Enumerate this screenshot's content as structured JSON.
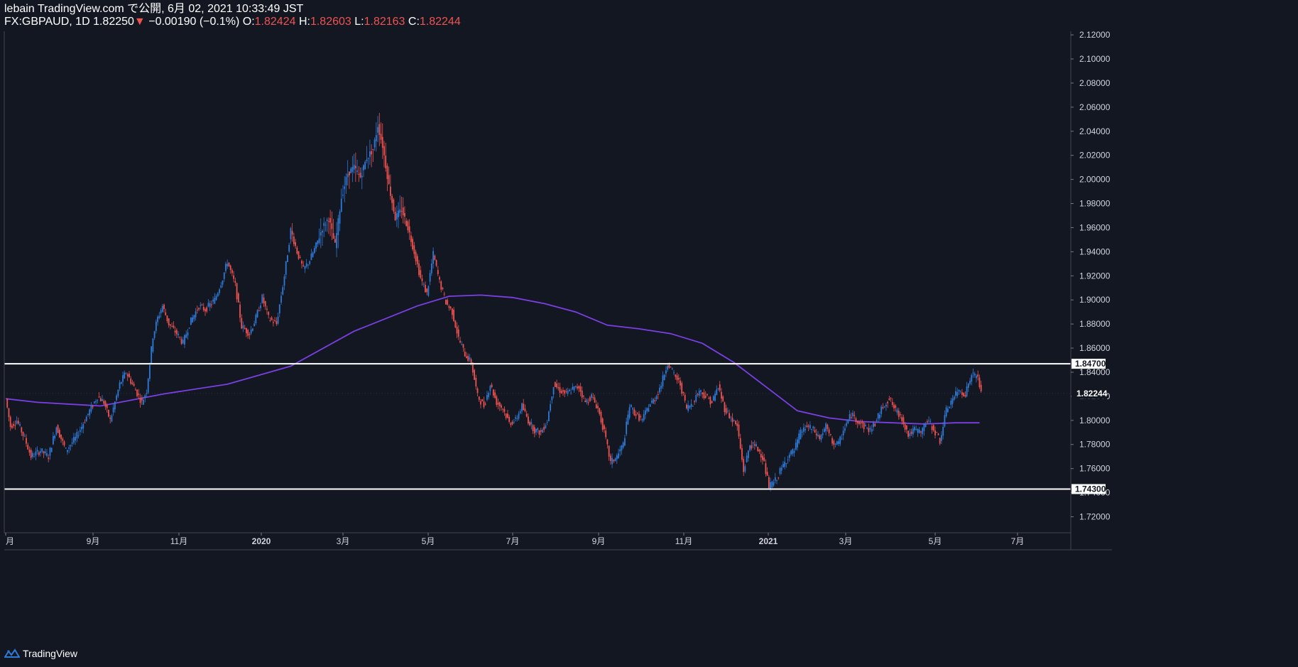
{
  "header": {
    "publish_line": "lebain TradingView.com で公開, 6月 02, 2021 10:33:49 JST",
    "symbol": "FX:GBPAUD, 1D",
    "last": "1.82250",
    "change_arrow": "▼",
    "change": "−0.00190 (−0.1%)",
    "o_label": "O:",
    "o_value": "1.82424",
    "h_label": "H:",
    "h_value": "1.82603",
    "l_label": "L:",
    "l_value": "1.82163",
    "c_label": "C:",
    "c_value": "1.82244"
  },
  "footer": {
    "brand": "TradingView",
    "logo_icon": "tradingview-logo-icon"
  },
  "colors": {
    "background": "#131722",
    "up": "#2e7ad8",
    "down": "#ef5350",
    "ma": "#7b3fe4",
    "level": "#ffffff",
    "text": "#d1d4dc"
  },
  "chart_data": {
    "type": "candlestick",
    "symbol": "FX:GBPAUD",
    "timeframe": "1D",
    "ylim": [
      1.71,
      2.13
    ],
    "y_ticks": [
      "1.72000",
      "1.74000",
      "1.76000",
      "1.78000",
      "1.80000",
      "1.82000",
      "1.84000",
      "1.86000",
      "1.88000",
      "1.90000",
      "1.92000",
      "1.94000",
      "1.96000",
      "1.98000",
      "2.00000",
      "2.02000",
      "2.04000",
      "2.06000",
      "2.08000",
      "2.10000",
      "2.12000"
    ],
    "x_ticks": [
      "月",
      "9月",
      "11月",
      "2020",
      "3月",
      "5月",
      "7月",
      "9月",
      "11月",
      "2021",
      "3月",
      "5月",
      "7月"
    ],
    "horizontal_levels": [
      {
        "label": "1.84700",
        "value": 1.847
      },
      {
        "label": "1.74300",
        "value": 1.743
      }
    ],
    "last_price_label": "1.82244",
    "last_price": 1.82244,
    "price_path": [
      [
        0,
        1.818
      ],
      [
        3,
        1.795
      ],
      [
        7,
        1.8
      ],
      [
        12,
        1.785
      ],
      [
        16,
        1.77
      ],
      [
        22,
        1.775
      ],
      [
        27,
        1.77
      ],
      [
        32,
        1.795
      ],
      [
        38,
        1.775
      ],
      [
        44,
        1.785
      ],
      [
        48,
        1.795
      ],
      [
        53,
        1.808
      ],
      [
        58,
        1.82
      ],
      [
        62,
        1.815
      ],
      [
        66,
        1.8
      ],
      [
        72,
        1.83
      ],
      [
        76,
        1.84
      ],
      [
        82,
        1.825
      ],
      [
        86,
        1.815
      ],
      [
        89,
        1.825
      ],
      [
        93,
        1.87
      ],
      [
        96,
        1.885
      ],
      [
        99,
        1.895
      ],
      [
        103,
        1.88
      ],
      [
        108,
        1.872
      ],
      [
        112,
        1.864
      ],
      [
        116,
        1.88
      ],
      [
        122,
        1.895
      ],
      [
        126,
        1.892
      ],
      [
        132,
        1.9
      ],
      [
        137,
        1.918
      ],
      [
        140,
        1.932
      ],
      [
        145,
        1.912
      ],
      [
        149,
        1.878
      ],
      [
        154,
        1.872
      ],
      [
        158,
        1.885
      ],
      [
        162,
        1.902
      ],
      [
        166,
        1.885
      ],
      [
        171,
        1.88
      ],
      [
        176,
        1.92
      ],
      [
        180,
        1.958
      ],
      [
        184,
        1.94
      ],
      [
        188,
        1.925
      ],
      [
        192,
        1.933
      ],
      [
        196,
        1.945
      ],
      [
        200,
        1.96
      ],
      [
        204,
        1.968
      ],
      [
        208,
        1.945
      ],
      [
        212,
        1.985
      ],
      [
        216,
        2.005
      ],
      [
        220,
        2.01
      ],
      [
        224,
        2.002
      ],
      [
        228,
        2.018
      ],
      [
        232,
        2.025
      ],
      [
        235,
        2.045
      ],
      [
        238,
        2.028
      ],
      [
        242,
        1.995
      ],
      [
        246,
        1.968
      ],
      [
        250,
        1.975
      ],
      [
        254,
        1.96
      ],
      [
        258,
        1.94
      ],
      [
        262,
        1.918
      ],
      [
        266,
        1.905
      ],
      [
        270,
        1.938
      ],
      [
        274,
        1.915
      ],
      [
        278,
        1.898
      ],
      [
        282,
        1.89
      ],
      [
        286,
        1.868
      ],
      [
        290,
        1.855
      ],
      [
        294,
        1.848
      ],
      [
        298,
        1.82
      ],
      [
        302,
        1.812
      ],
      [
        306,
        1.83
      ],
      [
        310,
        1.815
      ],
      [
        314,
        1.81
      ],
      [
        318,
        1.798
      ],
      [
        322,
        1.8
      ],
      [
        326,
        1.812
      ],
      [
        330,
        1.8
      ],
      [
        334,
        1.792
      ],
      [
        338,
        1.79
      ],
      [
        342,
        1.8
      ],
      [
        346,
        1.83
      ],
      [
        350,
        1.825
      ],
      [
        354,
        1.822
      ],
      [
        358,
        1.826
      ],
      [
        362,
        1.828
      ],
      [
        366,
        1.815
      ],
      [
        370,
        1.82
      ],
      [
        374,
        1.81
      ],
      [
        378,
        1.79
      ],
      [
        382,
        1.765
      ],
      [
        386,
        1.77
      ],
      [
        390,
        1.78
      ],
      [
        394,
        1.812
      ],
      [
        398,
        1.805
      ],
      [
        402,
        1.8
      ],
      [
        406,
        1.812
      ],
      [
        410,
        1.818
      ],
      [
        414,
        1.83
      ],
      [
        418,
        1.848
      ],
      [
        422,
        1.838
      ],
      [
        426,
        1.83
      ],
      [
        430,
        1.81
      ],
      [
        434,
        1.815
      ],
      [
        438,
        1.825
      ],
      [
        442,
        1.82
      ],
      [
        446,
        1.815
      ],
      [
        450,
        1.828
      ],
      [
        454,
        1.81
      ],
      [
        458,
        1.802
      ],
      [
        462,
        1.795
      ],
      [
        466,
        1.758
      ],
      [
        470,
        1.78
      ],
      [
        474,
        1.778
      ],
      [
        478,
        1.77
      ],
      [
        482,
        1.745
      ],
      [
        486,
        1.75
      ],
      [
        490,
        1.76
      ],
      [
        494,
        1.77
      ],
      [
        498,
        1.775
      ],
      [
        502,
        1.79
      ],
      [
        506,
        1.795
      ],
      [
        510,
        1.792
      ],
      [
        514,
        1.785
      ],
      [
        518,
        1.795
      ],
      [
        522,
        1.782
      ],
      [
        526,
        1.78
      ],
      [
        530,
        1.795
      ],
      [
        534,
        1.805
      ],
      [
        538,
        1.8
      ],
      [
        542,
        1.795
      ],
      [
        546,
        1.792
      ],
      [
        550,
        1.8
      ],
      [
        554,
        1.812
      ],
      [
        558,
        1.818
      ],
      [
        562,
        1.808
      ],
      [
        566,
        1.802
      ],
      [
        570,
        1.788
      ],
      [
        574,
        1.792
      ],
      [
        578,
        1.79
      ],
      [
        582,
        1.8
      ],
      [
        586,
        1.793
      ],
      [
        590,
        1.783
      ],
      [
        594,
        1.808
      ],
      [
        598,
        1.818
      ],
      [
        602,
        1.825
      ],
      [
        606,
        1.822
      ],
      [
        610,
        1.838
      ],
      [
        614,
        1.836
      ],
      [
        616,
        1.822
      ]
    ],
    "ma_path": [
      [
        0,
        1.818
      ],
      [
        20,
        1.815
      ],
      [
        60,
        1.812
      ],
      [
        100,
        1.822
      ],
      [
        140,
        1.83
      ],
      [
        180,
        1.845
      ],
      [
        220,
        1.874
      ],
      [
        260,
        1.895
      ],
      [
        280,
        1.903
      ],
      [
        300,
        1.904
      ],
      [
        320,
        1.902
      ],
      [
        340,
        1.897
      ],
      [
        360,
        1.89
      ],
      [
        380,
        1.879
      ],
      [
        400,
        1.876
      ],
      [
        420,
        1.872
      ],
      [
        440,
        1.864
      ],
      [
        460,
        1.848
      ],
      [
        480,
        1.828
      ],
      [
        500,
        1.808
      ],
      [
        520,
        1.802
      ],
      [
        540,
        1.799
      ],
      [
        560,
        1.798
      ],
      [
        580,
        1.797
      ],
      [
        600,
        1.798
      ],
      [
        615,
        1.798
      ]
    ]
  }
}
